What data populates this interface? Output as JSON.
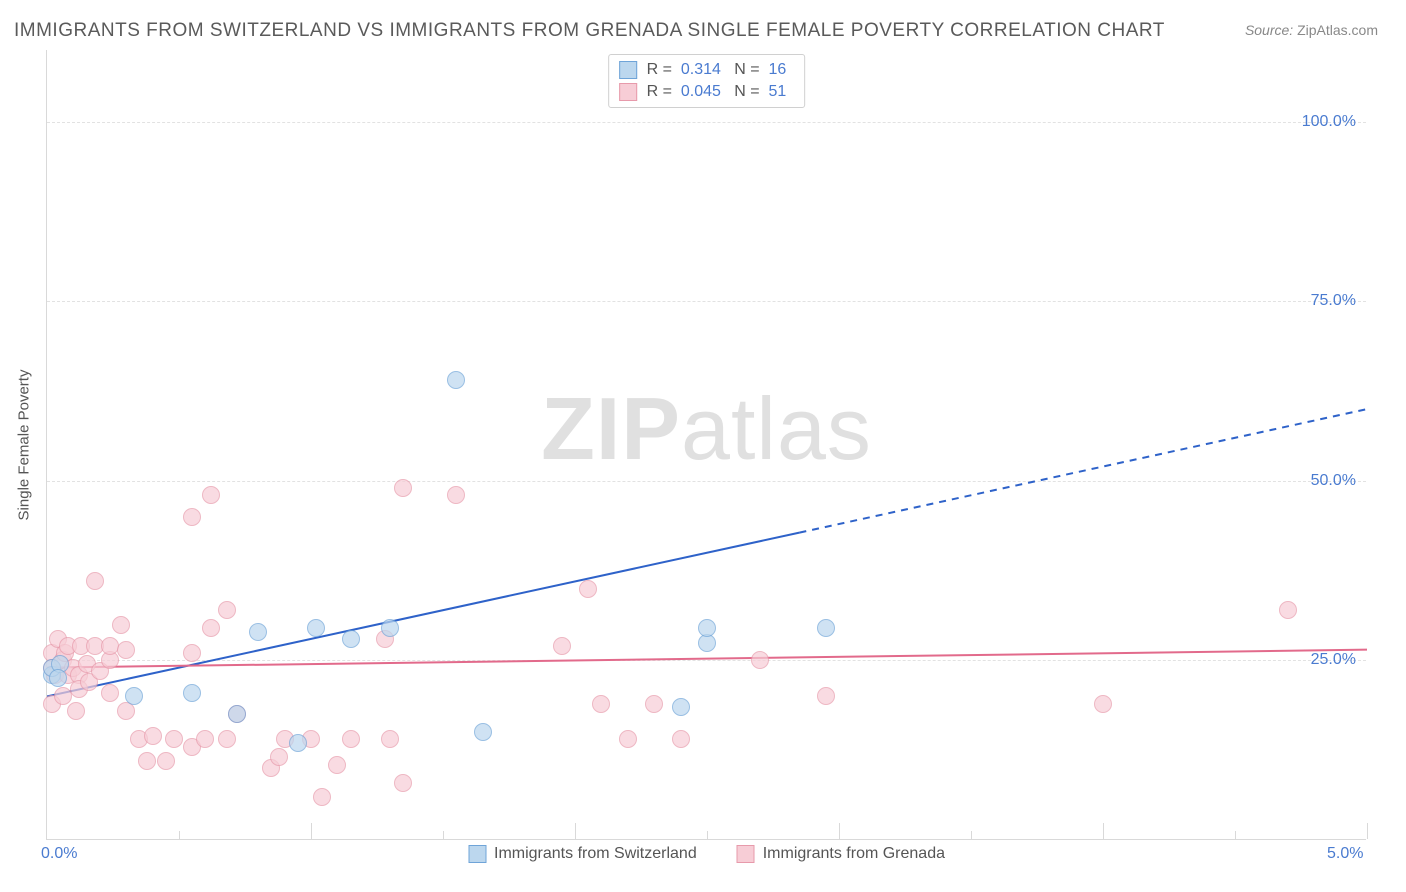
{
  "title": "IMMIGRANTS FROM SWITZERLAND VS IMMIGRANTS FROM GRENADA SINGLE FEMALE POVERTY CORRELATION CHART",
  "source_label": "Source:",
  "source_value": "ZipAtlas.com",
  "watermark_zip": "ZIP",
  "watermark_atlas": "atlas",
  "y_axis_label": "Single Female Poverty",
  "chart": {
    "type": "scatter",
    "background_color": "#ffffff",
    "grid_color": "#e2e2e2",
    "axis_color": "#d9d9d9",
    "tick_label_color": "#4a7bd0",
    "xlim": [
      0,
      5.0
    ],
    "ylim": [
      0,
      110
    ],
    "x_ticks": [
      {
        "val": 0.0,
        "label": "0.0%"
      },
      {
        "val": 5.0,
        "label": "5.0%"
      }
    ],
    "y_ticks": [
      {
        "val": 25,
        "label": "25.0%"
      },
      {
        "val": 50,
        "label": "50.0%"
      },
      {
        "val": 75,
        "label": "75.0%"
      },
      {
        "val": 100,
        "label": "100.0%"
      }
    ],
    "x_gridlines": [
      0.5,
      1.0,
      1.5,
      2.0,
      2.5,
      3.0,
      3.5,
      4.0,
      4.5,
      5.0
    ],
    "x_gridlines_major_every": 2,
    "series": [
      {
        "name": "Immigrants from Switzerland",
        "fill": "#bcd7ee",
        "stroke": "#6fa4d8",
        "marker_radius": 9,
        "fill_opacity": 0.7,
        "trend": {
          "color": "#2e62c9",
          "width": 2,
          "x0": 0,
          "y0": 20,
          "x1": 5.0,
          "y1": 60,
          "solid_until_x": 2.85,
          "dash": "7,6"
        },
        "r": "0.314",
        "n": "16",
        "points": [
          [
            0.02,
            23
          ],
          [
            0.02,
            24
          ],
          [
            0.05,
            24.5
          ],
          [
            0.04,
            22.5
          ],
          [
            0.33,
            20
          ],
          [
            0.55,
            20.5
          ],
          [
            0.72,
            17.5
          ],
          [
            0.95,
            13.5
          ],
          [
            0.8,
            29
          ],
          [
            1.02,
            29.5
          ],
          [
            1.15,
            28
          ],
          [
            1.3,
            29.5
          ],
          [
            1.55,
            64
          ],
          [
            1.65,
            15
          ],
          [
            2.4,
            18.5
          ],
          [
            2.5,
            27.5
          ],
          [
            2.5,
            29.5
          ],
          [
            2.95,
            29.5
          ]
        ]
      },
      {
        "name": "Immigrants from Grenada",
        "fill": "#f7cdd6",
        "stroke": "#e79aab",
        "marker_radius": 9,
        "fill_opacity": 0.7,
        "trend": {
          "color": "#e26a8b",
          "width": 2,
          "x0": 0,
          "y0": 24,
          "x1": 5.0,
          "y1": 26.5,
          "solid_until_x": 5.0,
          "dash": ""
        },
        "r": "0.045",
        "n": "51",
        "points": [
          [
            0.02,
            26
          ],
          [
            0.02,
            24
          ],
          [
            0.03,
            23
          ],
          [
            0.04,
            28
          ],
          [
            0.02,
            19
          ],
          [
            0.06,
            20
          ],
          [
            0.06,
            25
          ],
          [
            0.07,
            26
          ],
          [
            0.08,
            23
          ],
          [
            0.08,
            27
          ],
          [
            0.1,
            24
          ],
          [
            0.12,
            23
          ],
          [
            0.12,
            21
          ],
          [
            0.13,
            27
          ],
          [
            0.11,
            18
          ],
          [
            0.16,
            22
          ],
          [
            0.15,
            24.5
          ],
          [
            0.18,
            27
          ],
          [
            0.18,
            36
          ],
          [
            0.2,
            23.5
          ],
          [
            0.24,
            20.5
          ],
          [
            0.24,
            25
          ],
          [
            0.24,
            27
          ],
          [
            0.28,
            30
          ],
          [
            0.3,
            26.5
          ],
          [
            0.3,
            18
          ],
          [
            0.35,
            14
          ],
          [
            0.38,
            11
          ],
          [
            0.4,
            14.5
          ],
          [
            0.45,
            11
          ],
          [
            0.48,
            14
          ],
          [
            0.55,
            13
          ],
          [
            0.55,
            26
          ],
          [
            0.55,
            45
          ],
          [
            0.62,
            29.5
          ],
          [
            0.6,
            14
          ],
          [
            0.62,
            48
          ],
          [
            0.68,
            14
          ],
          [
            0.68,
            32
          ],
          [
            0.72,
            17.5
          ],
          [
            0.85,
            10
          ],
          [
            0.88,
            11.5
          ],
          [
            0.9,
            14
          ],
          [
            1.0,
            14
          ],
          [
            1.04,
            6
          ],
          [
            1.1,
            10.5
          ],
          [
            1.15,
            14
          ],
          [
            1.28,
            28
          ],
          [
            1.3,
            14
          ],
          [
            1.35,
            8
          ],
          [
            1.35,
            49
          ],
          [
            1.55,
            48
          ],
          [
            1.95,
            27
          ],
          [
            2.05,
            35
          ],
          [
            2.1,
            19
          ],
          [
            2.2,
            14
          ],
          [
            2.3,
            19
          ],
          [
            2.4,
            14
          ],
          [
            2.7,
            25
          ],
          [
            2.95,
            20
          ],
          [
            4.0,
            19
          ],
          [
            4.7,
            32
          ]
        ]
      }
    ]
  },
  "legend_top": {
    "r_label": "R  =",
    "n_label": "N  ="
  }
}
